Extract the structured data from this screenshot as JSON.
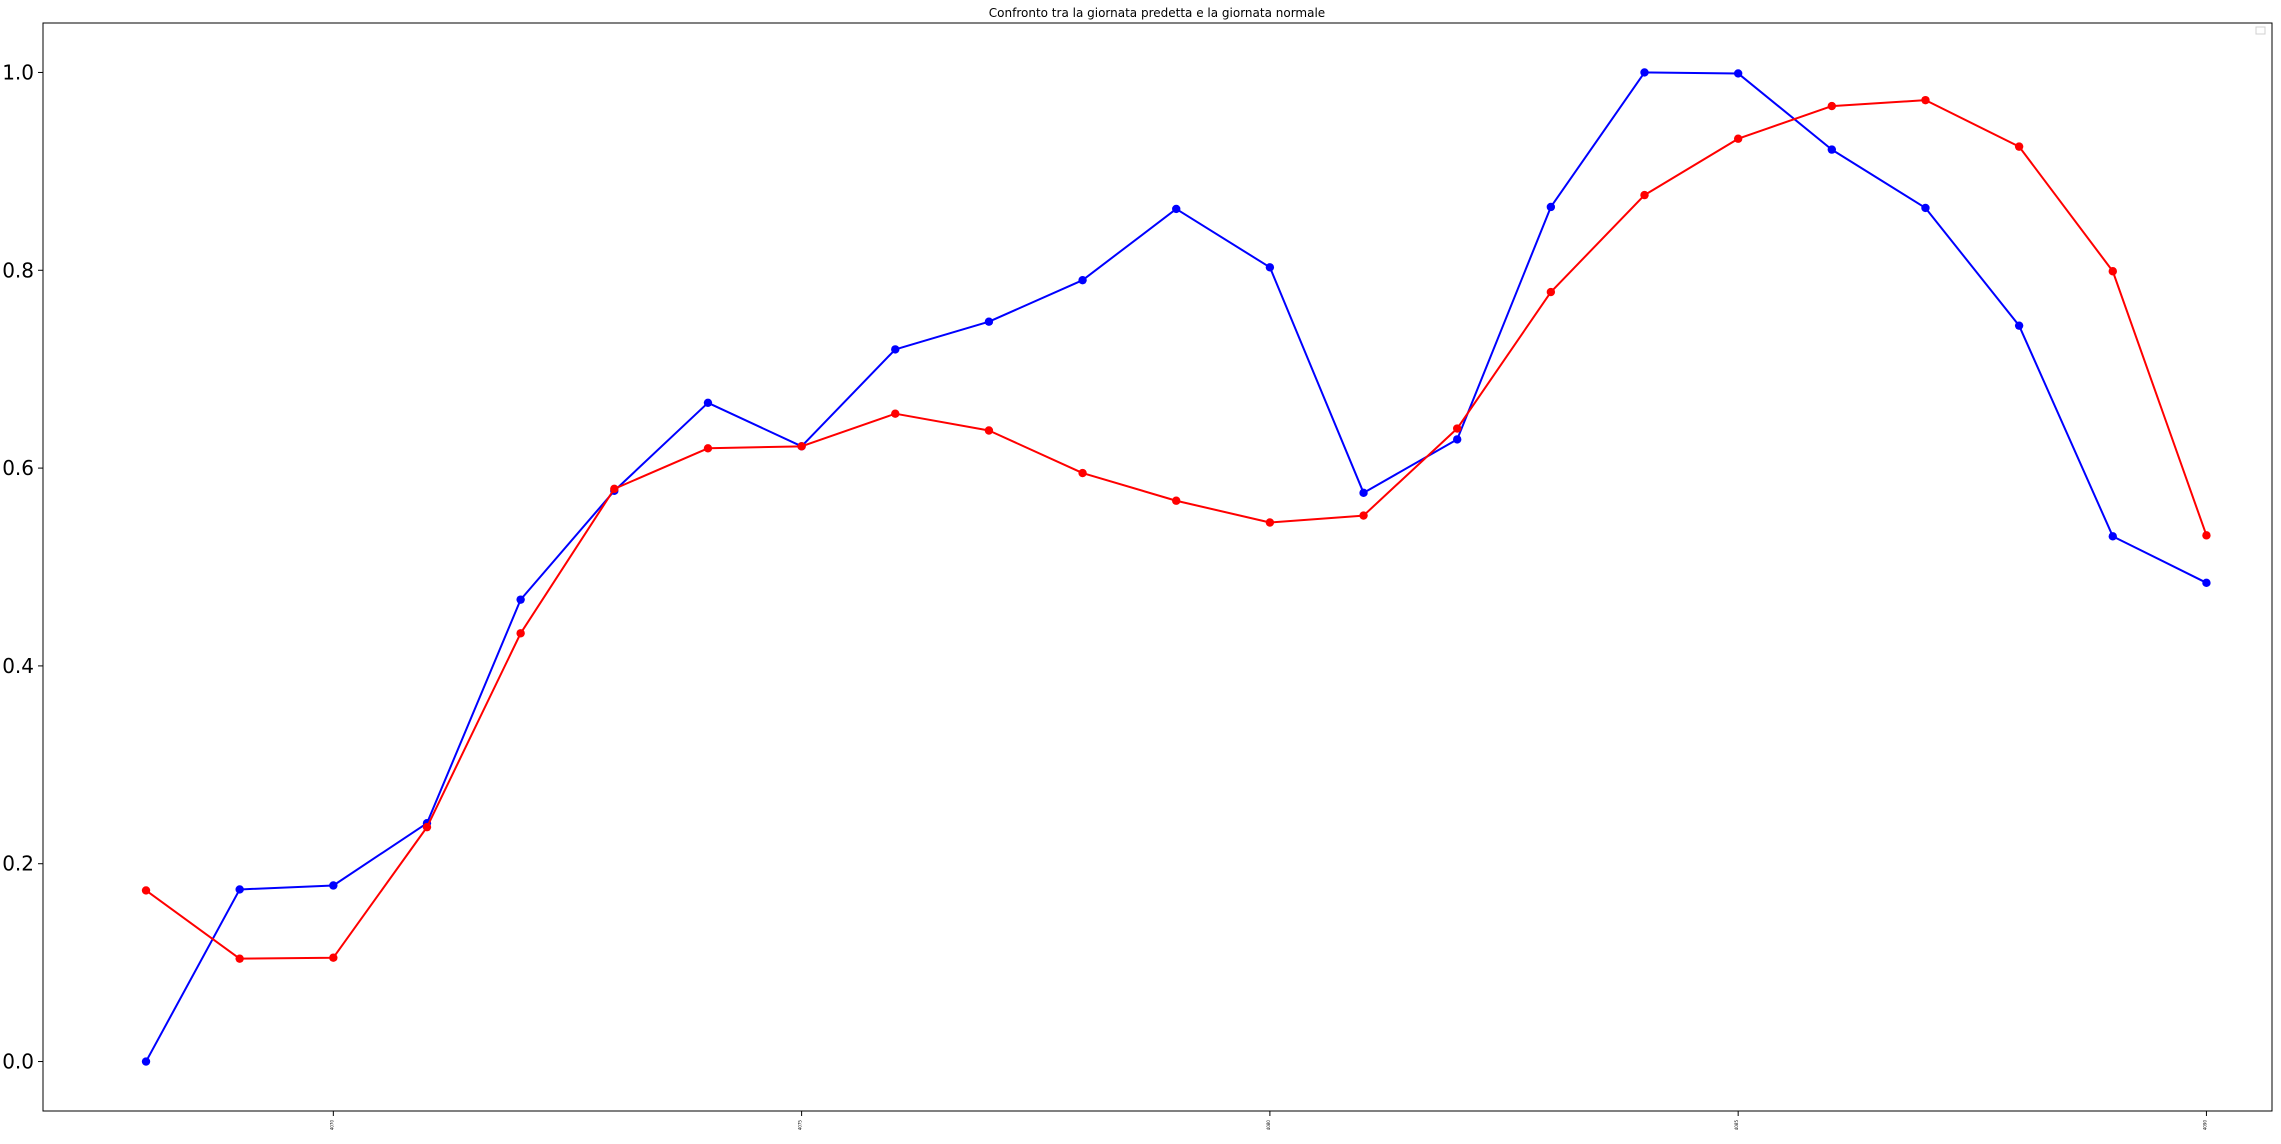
{
  "chart_data": {
    "type": "line",
    "title": "Confronto tra la giornata predetta e la giornata normale",
    "xlabel": "",
    "ylabel": "",
    "x": [
      1,
      2,
      3,
      4,
      5,
      6,
      7,
      8,
      9,
      10,
      11,
      12,
      13,
      14,
      15,
      16,
      17,
      18,
      19,
      20,
      21,
      22,
      23
    ],
    "xlim": [
      -0.1,
      23.7
    ],
    "ylim": [
      -0.05,
      1.05
    ],
    "yticks": [
      0.0,
      0.2,
      0.4,
      0.6,
      0.8,
      1.0
    ],
    "ytick_labels": [
      "0.0",
      "0.2",
      "0.4",
      "0.6",
      "0.8",
      "1.0"
    ],
    "xticks": [
      3,
      8,
      13,
      18,
      23
    ],
    "xtick_labels": [
      "4070",
      "4075",
      "4080",
      "4085",
      "4090"
    ],
    "grid": false,
    "legend": "top-right",
    "series": [
      {
        "color": "#0000ff",
        "marker": "circle",
        "values": [
          0.0,
          0.174,
          0.178,
          0.241,
          0.467,
          0.577,
          0.666,
          0.622,
          0.72,
          0.748,
          0.79,
          0.862,
          0.803,
          0.575,
          0.629,
          0.864,
          1.0,
          0.999,
          0.922,
          0.863,
          0.744,
          0.531,
          0.484
        ]
      },
      {
        "color": "#ff0000",
        "marker": "circle",
        "values": [
          0.173,
          0.104,
          0.105,
          0.237,
          0.433,
          0.579,
          0.62,
          0.622,
          0.655,
          0.638,
          0.595,
          0.567,
          0.545,
          0.552,
          0.64,
          0.778,
          0.876,
          0.933,
          0.966,
          0.972,
          0.925,
          0.799,
          0.532
        ]
      }
    ]
  }
}
